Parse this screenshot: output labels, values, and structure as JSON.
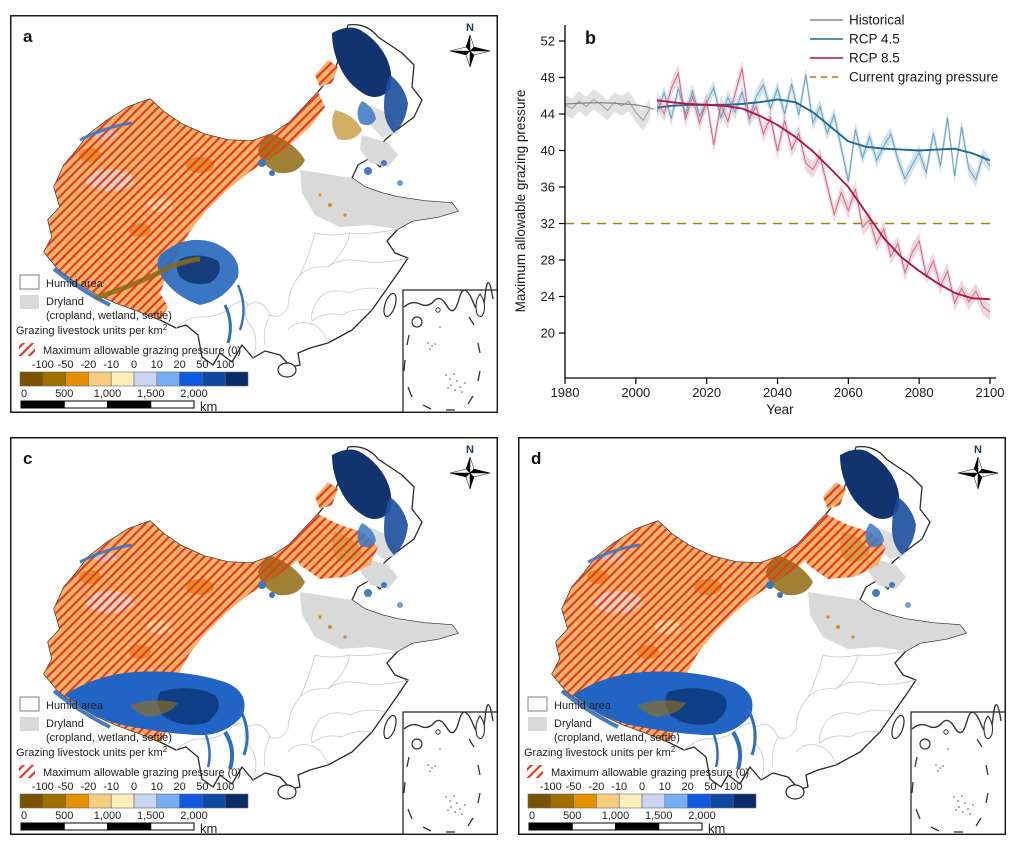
{
  "figure": {
    "panels": {
      "a": {
        "label": "a"
      },
      "b": {
        "label": "b"
      },
      "c": {
        "label": "c"
      },
      "d": {
        "label": "d"
      }
    }
  },
  "map_legend": {
    "humid_label": "Humid area",
    "dryland_label": "Dryland",
    "dryland_sub": "(cropland, wetland, settle)",
    "units_label": "Grazing livestock units per km",
    "units_sup": "2",
    "hatch_label": "Maximum allowable grazing pressure (0)",
    "hatch_color": "#e73a23",
    "dryland_color": "#d9d9d9",
    "colorbar_ticks": [
      "-100",
      "-50",
      "-20",
      "-10",
      "0",
      "10",
      "20",
      "50",
      "100"
    ],
    "colorbar_colors": [
      "#7a5200",
      "#a06f00",
      "#e59000",
      "#f8cd80",
      "#fdeebc",
      "#c9d5f2",
      "#76aef5",
      "#0f5be0",
      "#0d49a2",
      "#0b2a68"
    ],
    "scalebar_ticks": [
      "0",
      "500",
      "1,000",
      "1,500",
      "2,000"
    ],
    "scalebar_unit": "km",
    "compass_label": "N"
  },
  "chart_data": {
    "type": "line",
    "xlabel": "Year",
    "ylabel": "Maximum allowable grazing pressure",
    "xlim": [
      1980,
      2100
    ],
    "ylim": [
      20,
      52
    ],
    "xticks": [
      1980,
      2000,
      2020,
      2040,
      2060,
      2080,
      2100
    ],
    "yticks": [
      20,
      24,
      28,
      32,
      36,
      40,
      44,
      48,
      52
    ],
    "grid": false,
    "legend_position": "top-right",
    "reference_line": {
      "label": "Current grazing pressure",
      "value": 32,
      "color": "#a87e04"
    },
    "series": [
      {
        "name": "Historical",
        "trend_color": "#878787",
        "annual_color": "#9e9e9e",
        "band_color": "rgba(170,170,170,0.35)",
        "band_width": 1.1,
        "years_annual": [
          1980,
          1982,
          1984,
          1986,
          1988,
          1990,
          1992,
          1994,
          1996,
          1998,
          2000,
          2002,
          2004
        ],
        "annual": [
          45.0,
          44.6,
          45.4,
          44.8,
          45.6,
          45.1,
          44.4,
          45.3,
          44.9,
          45.4,
          44.2,
          43.3,
          44.6
        ],
        "years_trend": [
          1980,
          1985,
          1990,
          1995,
          2000,
          2003,
          2005
        ],
        "trend": [
          45.1,
          45.2,
          45.25,
          45.15,
          45.0,
          44.8,
          44.5
        ]
      },
      {
        "name": "RCP 4.5",
        "trend_color": "#1f6a92",
        "annual_color": "#6ba3bf",
        "band_color": "rgba(130,180,210,0.38)",
        "band_width": 0.8,
        "years_annual": [
          2006,
          2008,
          2010,
          2012,
          2014,
          2016,
          2018,
          2020,
          2022,
          2024,
          2026,
          2028,
          2030,
          2032,
          2034,
          2036,
          2038,
          2040,
          2042,
          2044,
          2046,
          2048,
          2050,
          2052,
          2054,
          2056,
          2058,
          2060,
          2062,
          2064,
          2066,
          2068,
          2070,
          2072,
          2074,
          2076,
          2078,
          2080,
          2082,
          2084,
          2086,
          2088,
          2090,
          2092,
          2094,
          2096,
          2098,
          2100
        ],
        "annual": [
          44.2,
          46.3,
          43.5,
          46.8,
          44.0,
          46.5,
          43.8,
          45.2,
          46.9,
          43.6,
          45.8,
          44.2,
          46.4,
          43.4,
          45.9,
          47.2,
          44.6,
          46.8,
          44.0,
          47.3,
          43.9,
          48.3,
          43.0,
          44.8,
          41.9,
          43.9,
          40.3,
          36.6,
          42.3,
          39.2,
          41.5,
          38.9,
          40.5,
          41.8,
          39.0,
          36.9,
          38.4,
          39.8,
          37.6,
          41.9,
          38.3,
          43.6,
          37.2,
          42.6,
          38.0,
          36.8,
          39.4,
          38.3
        ],
        "years_trend": [
          2006,
          2010,
          2015,
          2020,
          2025,
          2030,
          2035,
          2040,
          2045,
          2050,
          2055,
          2060,
          2065,
          2070,
          2075,
          2080,
          2085,
          2090,
          2095,
          2100
        ],
        "trend": [
          44.7,
          44.9,
          45.0,
          45.0,
          45.0,
          45.1,
          45.3,
          45.6,
          45.3,
          44.2,
          42.6,
          41.0,
          40.4,
          40.2,
          40.1,
          40.0,
          40.1,
          40.2,
          39.7,
          38.9
        ]
      },
      {
        "name": "RCP 8.5",
        "trend_color": "#b2164a",
        "annual_color": "#cb6e88",
        "band_color": "rgba(225,150,170,0.4)",
        "band_width": 0.9,
        "years_annual": [
          2006,
          2008,
          2010,
          2012,
          2014,
          2016,
          2018,
          2020,
          2022,
          2024,
          2026,
          2028,
          2030,
          2032,
          2034,
          2036,
          2038,
          2040,
          2042,
          2044,
          2046,
          2048,
          2050,
          2052,
          2054,
          2056,
          2058,
          2060,
          2062,
          2064,
          2066,
          2068,
          2070,
          2072,
          2074,
          2076,
          2078,
          2080,
          2082,
          2084,
          2086,
          2088,
          2090,
          2092,
          2094,
          2096,
          2098,
          2100
        ],
        "annual": [
          45.6,
          44.0,
          46.8,
          48.5,
          43.4,
          45.9,
          43.0,
          45.5,
          40.6,
          45.0,
          43.2,
          46.2,
          49.0,
          43.5,
          44.8,
          41.8,
          43.6,
          39.9,
          43.3,
          40.1,
          41.9,
          38.6,
          37.9,
          39.4,
          36.2,
          33.0,
          35.4,
          33.4,
          35.8,
          31.6,
          32.4,
          29.8,
          31.4,
          28.4,
          29.8,
          26.6,
          28.8,
          30.1,
          26.2,
          27.9,
          25.1,
          26.8,
          23.3,
          24.9,
          23.4,
          24.6,
          22.9,
          22.3
        ],
        "years_trend": [
          2006,
          2010,
          2015,
          2020,
          2025,
          2030,
          2035,
          2040,
          2045,
          2050,
          2055,
          2060,
          2065,
          2070,
          2075,
          2080,
          2085,
          2090,
          2095,
          2100
        ],
        "trend": [
          45.5,
          45.3,
          45.1,
          45.0,
          44.9,
          44.6,
          43.8,
          42.8,
          41.5,
          39.9,
          38.0,
          36.0,
          33.2,
          30.4,
          28.3,
          26.8,
          25.5,
          24.4,
          23.8,
          23.7
        ]
      }
    ]
  }
}
